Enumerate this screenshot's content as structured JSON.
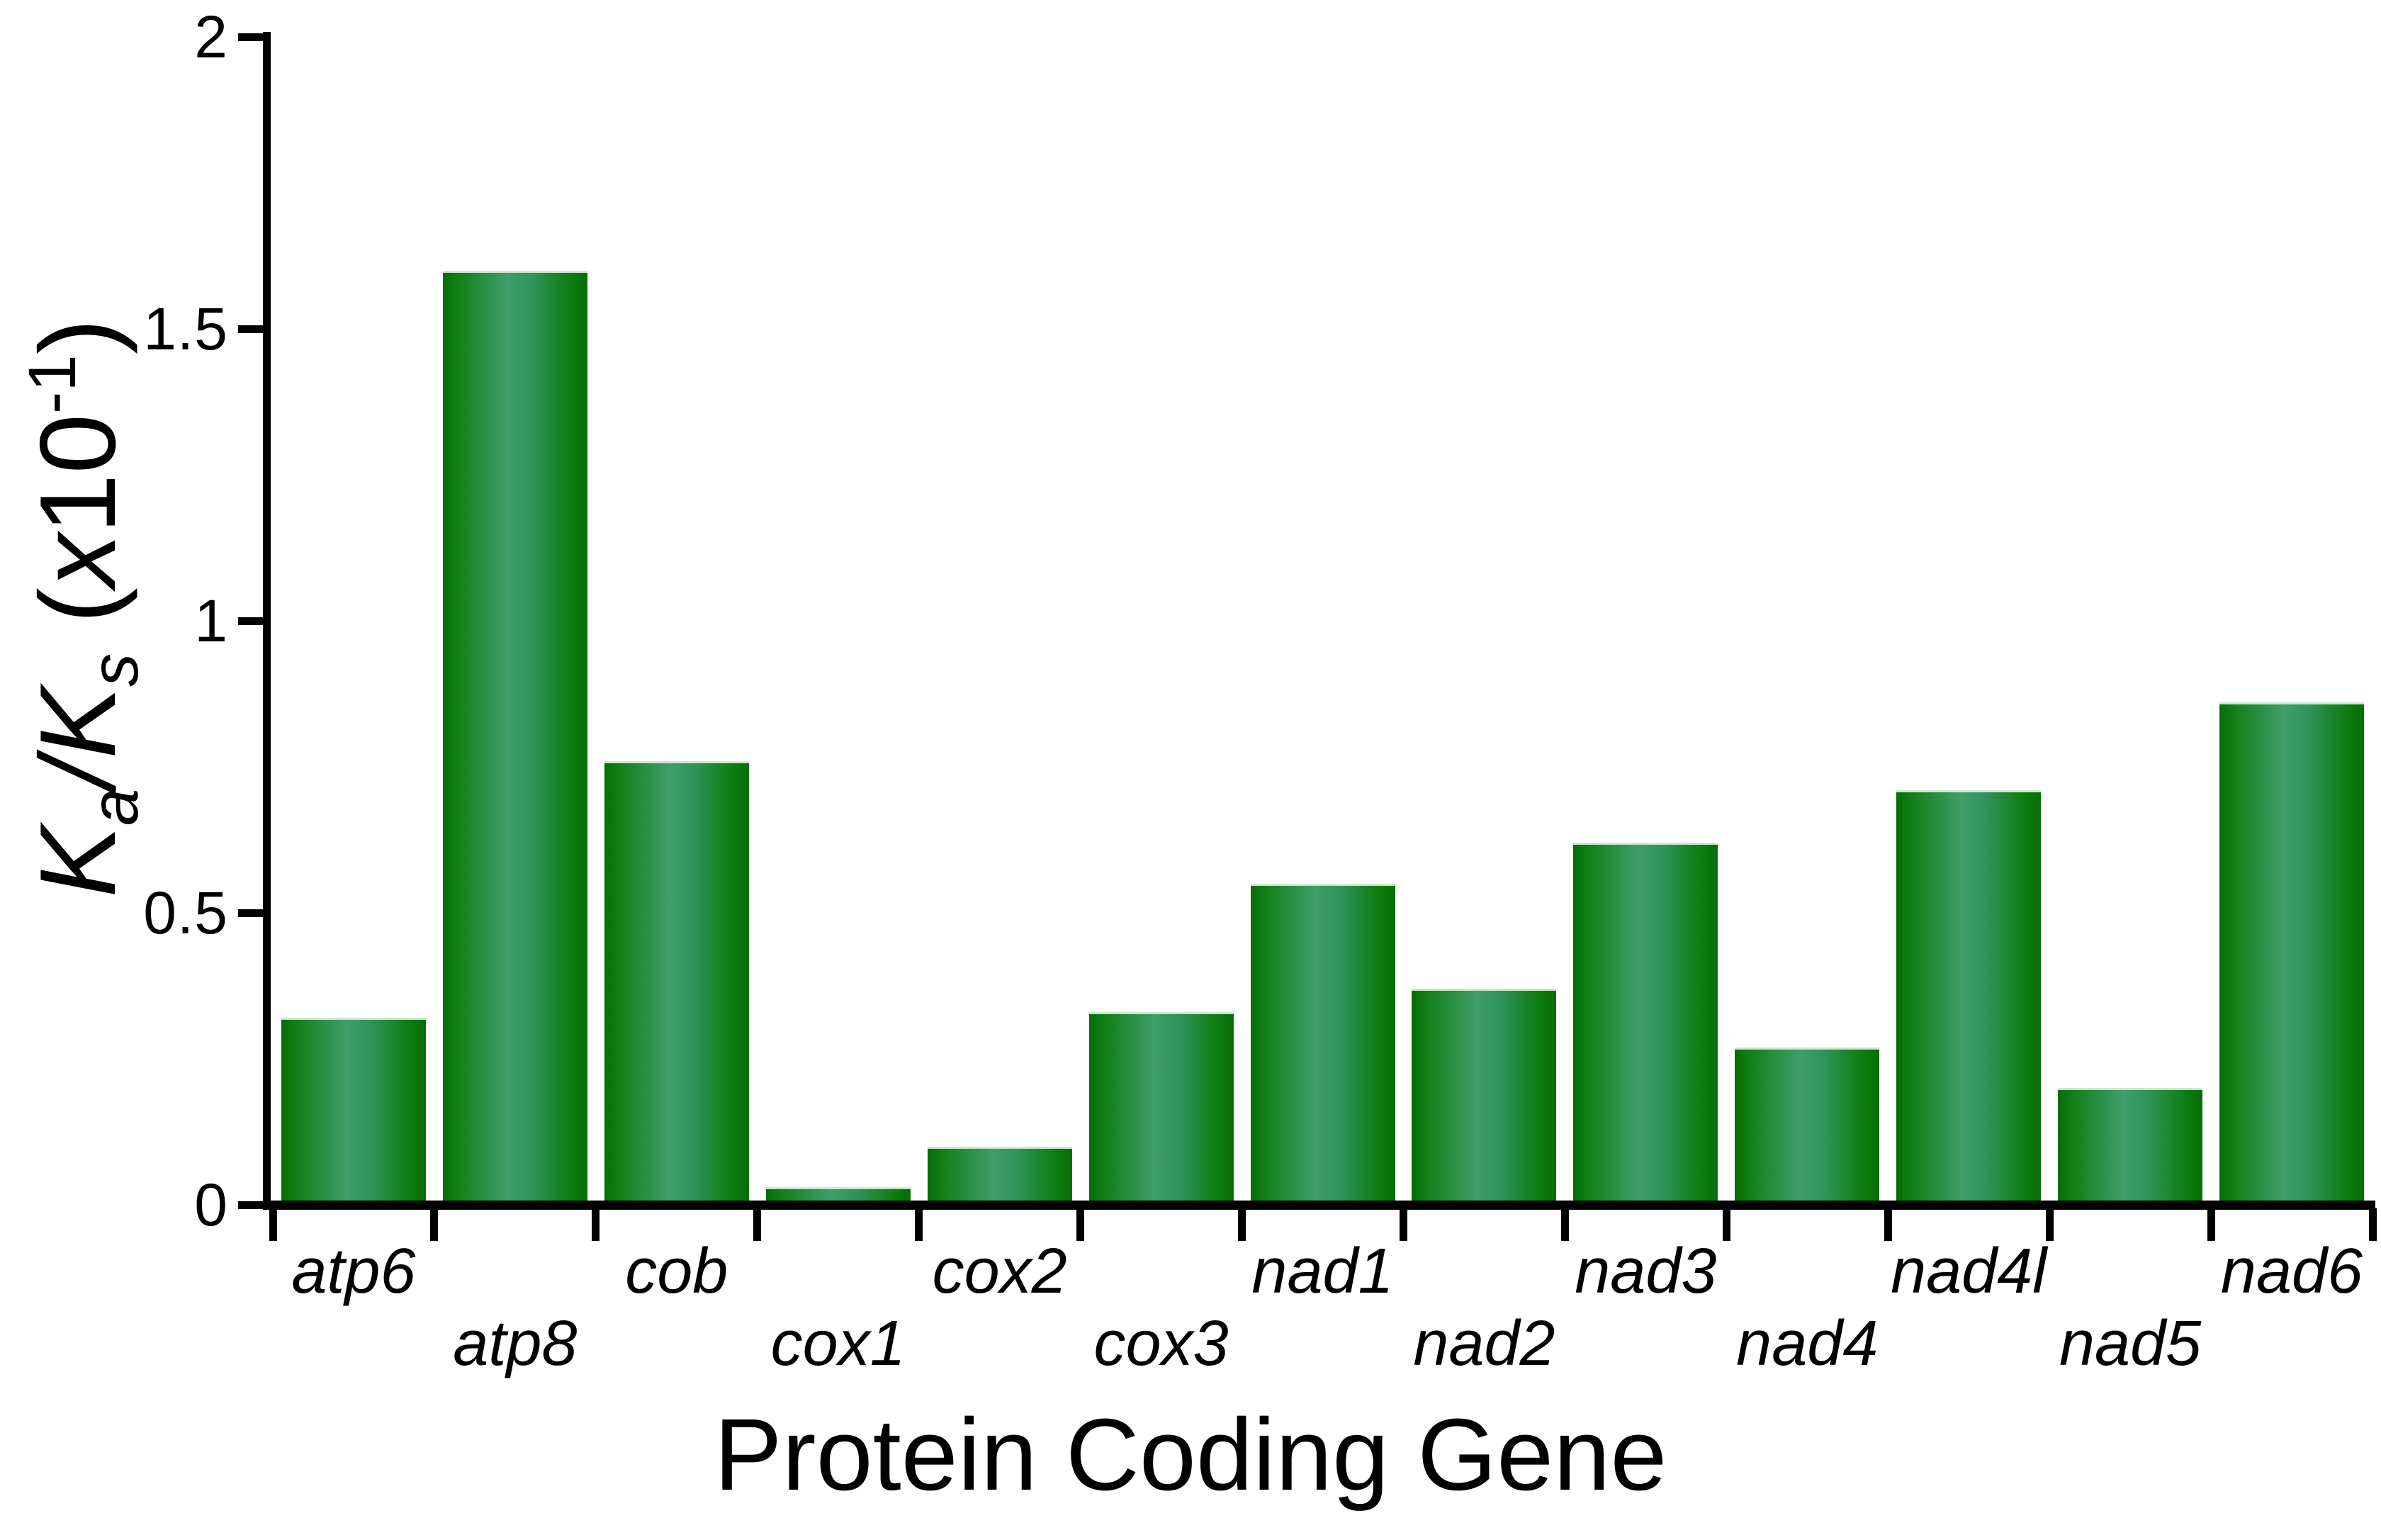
{
  "figure": {
    "x_axis_title": "Protein Coding Gene",
    "y_axis_title_parts": {
      "k1": "K",
      "sub1": "a",
      "k2": "/K",
      "sub2": "s",
      "open": " (",
      "x": "x",
      "base": "10",
      "exponent": "-1",
      "close": ")"
    },
    "y_tick_labels": [
      "0",
      "0.5",
      "1",
      "1.5",
      "2"
    ],
    "colors": {
      "bar_edge_dark": "#066d06",
      "bar_center_light": "#3f9e6a",
      "bar_top_highlight": "#cde7cd",
      "axis": "#000000",
      "text": "#000000",
      "background": "#ffffff"
    }
  },
  "chart_data": {
    "type": "bar",
    "title": "",
    "xlabel": "Protein Coding Gene",
    "ylabel": "Ka/Ks (x10-1)",
    "categories": [
      "atp6",
      "atp8",
      "cob",
      "cox1",
      "cox2",
      "cox3",
      "nad1",
      "nad2",
      "nad3",
      "nad4",
      "nad4l",
      "nad5",
      "nad6"
    ],
    "values": [
      0.32,
      1.6,
      0.76,
      0.03,
      0.1,
      0.33,
      0.55,
      0.37,
      0.62,
      0.27,
      0.71,
      0.2,
      0.86
    ],
    "ylim": [
      0,
      2
    ],
    "yticks": [
      0,
      0.5,
      1,
      1.5,
      2
    ],
    "grid": false,
    "legend": "none",
    "bar_style": "green horizontal cylindrical gradient, italic category labels alternating on two rows"
  }
}
